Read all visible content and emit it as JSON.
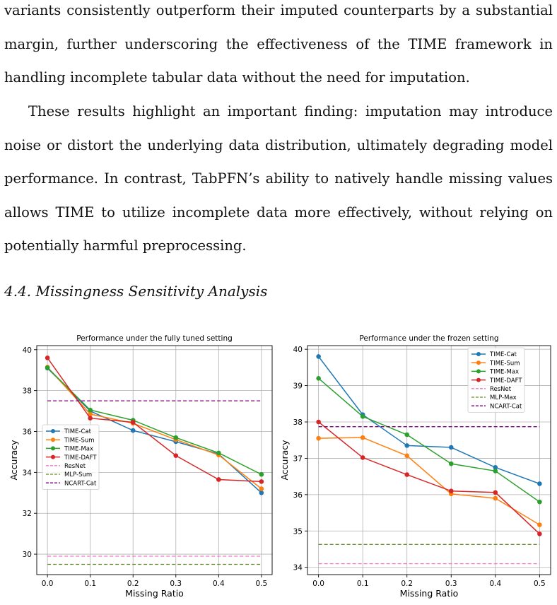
{
  "paragraphs": [
    "variants consistently outperform their imputed counterparts by a substantial margin, further underscoring the effectiveness of the TIME framework in handling incomplete tabular data without the need for imputation.",
    "These results highlight an important finding: imputation may introduce noise or distort the underlying data distribution, ultimately degrading model performance. In contrast, TabPFN’s ability to natively handle missing values allows TIME to utilize incomplete data more effectively, without relying on potentially harmful preprocessing."
  ],
  "section": {
    "number": "4.4.",
    "title": "Missingness Sensitivity Analysis"
  },
  "chart_data": [
    {
      "type": "line",
      "title": "Performance under the fully tuned setting",
      "xlabel": "Missing Ratio",
      "ylabel": "Accuracy",
      "x": [
        0.0,
        0.1,
        0.2,
        0.3,
        0.4,
        0.5
      ],
      "xticks": [
        "0.0",
        "0.1",
        "0.2",
        "0.3",
        "0.4",
        "0.5"
      ],
      "xlim": [
        -0.025,
        0.525
      ],
      "yticks": [
        30,
        32,
        34,
        36,
        38,
        40
      ],
      "ylim": [
        29.0,
        40.2
      ],
      "grid": true,
      "legend_position": "center-left",
      "series": [
        {
          "name": "TIME-Cat",
          "color": "#1f77b4",
          "style": "solid-marker",
          "values": [
            39.1,
            37.0,
            36.05,
            35.5,
            34.9,
            33.0
          ]
        },
        {
          "name": "TIME-Sum",
          "color": "#ff7f0e",
          "style": "solid-marker",
          "values": [
            39.15,
            36.85,
            36.4,
            35.6,
            34.85,
            33.2
          ]
        },
        {
          "name": "TIME-Max",
          "color": "#2ca02c",
          "style": "solid-marker",
          "values": [
            39.12,
            37.05,
            36.55,
            35.7,
            34.95,
            33.9
          ]
        },
        {
          "name": "TIME-DAFT",
          "color": "#d62728",
          "style": "solid-marker",
          "values": [
            39.6,
            36.65,
            36.45,
            34.82,
            33.65,
            33.55
          ]
        },
        {
          "name": "ResNet",
          "color": "#f07ac2",
          "style": "dashed",
          "values": [
            29.9,
            29.9,
            29.9,
            29.9,
            29.9,
            29.9
          ]
        },
        {
          "name": "MLP-Sum",
          "color": "#6b8e23",
          "style": "dashed",
          "values": [
            29.5,
            29.5,
            29.5,
            29.5,
            29.5,
            29.5
          ]
        },
        {
          "name": "NCART-Cat",
          "color": "#800080",
          "style": "dashed",
          "values": [
            37.5,
            37.5,
            37.5,
            37.5,
            37.5,
            37.5
          ]
        }
      ]
    },
    {
      "type": "line",
      "title": "Performance under the frozen setting",
      "xlabel": "Missing Ratio",
      "ylabel": "Accuracy",
      "x": [
        0.0,
        0.1,
        0.2,
        0.3,
        0.4,
        0.5
      ],
      "xticks": [
        "0.0",
        "0.1",
        "0.2",
        "0.3",
        "0.4",
        "0.5"
      ],
      "xlim": [
        -0.025,
        0.525
      ],
      "yticks": [
        34,
        35,
        36,
        37,
        38,
        39,
        40
      ],
      "ylim": [
        33.8,
        40.1
      ],
      "grid": true,
      "legend_position": "top-right",
      "series": [
        {
          "name": "TIME-Cat",
          "color": "#1f77b4",
          "style": "solid-marker",
          "values": [
            39.8,
            38.2,
            37.35,
            37.3,
            36.75,
            36.3
          ]
        },
        {
          "name": "TIME-Sum",
          "color": "#ff7f0e",
          "style": "solid-marker",
          "values": [
            37.55,
            37.57,
            37.07,
            36.02,
            35.9,
            35.17
          ]
        },
        {
          "name": "TIME-Max",
          "color": "#2ca02c",
          "style": "solid-marker",
          "values": [
            39.2,
            38.15,
            37.65,
            36.85,
            36.65,
            35.8
          ]
        },
        {
          "name": "TIME-DAFT",
          "color": "#d62728",
          "style": "solid-marker",
          "values": [
            38.0,
            37.02,
            36.55,
            36.1,
            36.06,
            34.92
          ]
        },
        {
          "name": "ResNet",
          "color": "#f07ac2",
          "style": "dashed",
          "values": [
            34.1,
            34.1,
            34.1,
            34.1,
            34.1,
            34.1
          ]
        },
        {
          "name": "MLP-Max",
          "color": "#6b8e23",
          "style": "dashed",
          "values": [
            34.63,
            34.63,
            34.63,
            34.63,
            34.63,
            34.63
          ]
        },
        {
          "name": "NCART-Cat",
          "color": "#800080",
          "style": "dashed",
          "values": [
            37.87,
            37.87,
            37.87,
            37.87,
            37.87,
            37.87
          ]
        }
      ]
    }
  ]
}
